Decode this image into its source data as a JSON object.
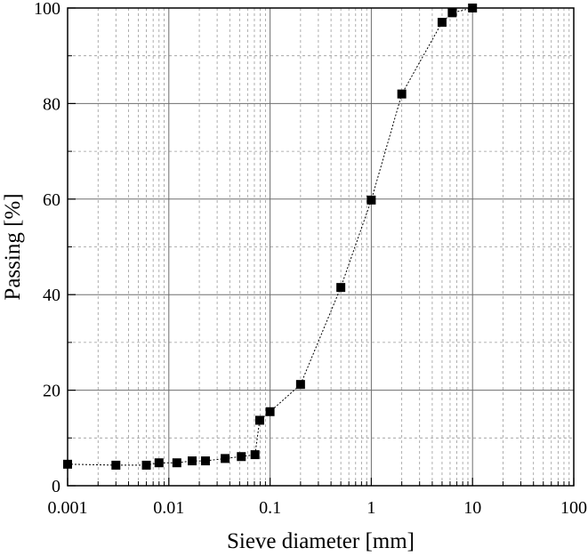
{
  "chart_data": {
    "type": "scatter",
    "title": "",
    "xlabel": "Sieve diameter [mm]",
    "ylabel": "Passing [%]",
    "xscale": "log",
    "xlim": [
      0.001,
      100
    ],
    "ylim": [
      0,
      100
    ],
    "xticks": [
      {
        "value": 0.001,
        "label": "0.001"
      },
      {
        "value": 0.01,
        "label": "0.01"
      },
      {
        "value": 0.1,
        "label": "0.1"
      },
      {
        "value": 1,
        "label": "1"
      },
      {
        "value": 10,
        "label": "10"
      },
      {
        "value": 100,
        "label": "100"
      }
    ],
    "yticks": [
      {
        "value": 0,
        "label": "0"
      },
      {
        "value": 20,
        "label": "20"
      },
      {
        "value": 40,
        "label": "40"
      },
      {
        "value": 60,
        "label": "60"
      },
      {
        "value": 80,
        "label": "80"
      },
      {
        "value": 100,
        "label": "100"
      }
    ],
    "grid": true,
    "legend": "none",
    "marker": "square",
    "line_style": "dotted",
    "color": "#000000",
    "series": [
      {
        "x": [
          0.001,
          0.003,
          0.006,
          0.008,
          0.012,
          0.017,
          0.023,
          0.036,
          0.052,
          0.071,
          0.079,
          0.1,
          0.2,
          0.5,
          1.0,
          2.0,
          5.0,
          6.3,
          10.0
        ],
        "y": [
          4.5,
          4.3,
          4.3,
          4.8,
          4.8,
          5.2,
          5.2,
          5.7,
          6.1,
          6.5,
          13.7,
          15.5,
          21.2,
          41.5,
          59.8,
          82.0,
          97.0,
          99.0,
          100.0
        ]
      }
    ]
  }
}
